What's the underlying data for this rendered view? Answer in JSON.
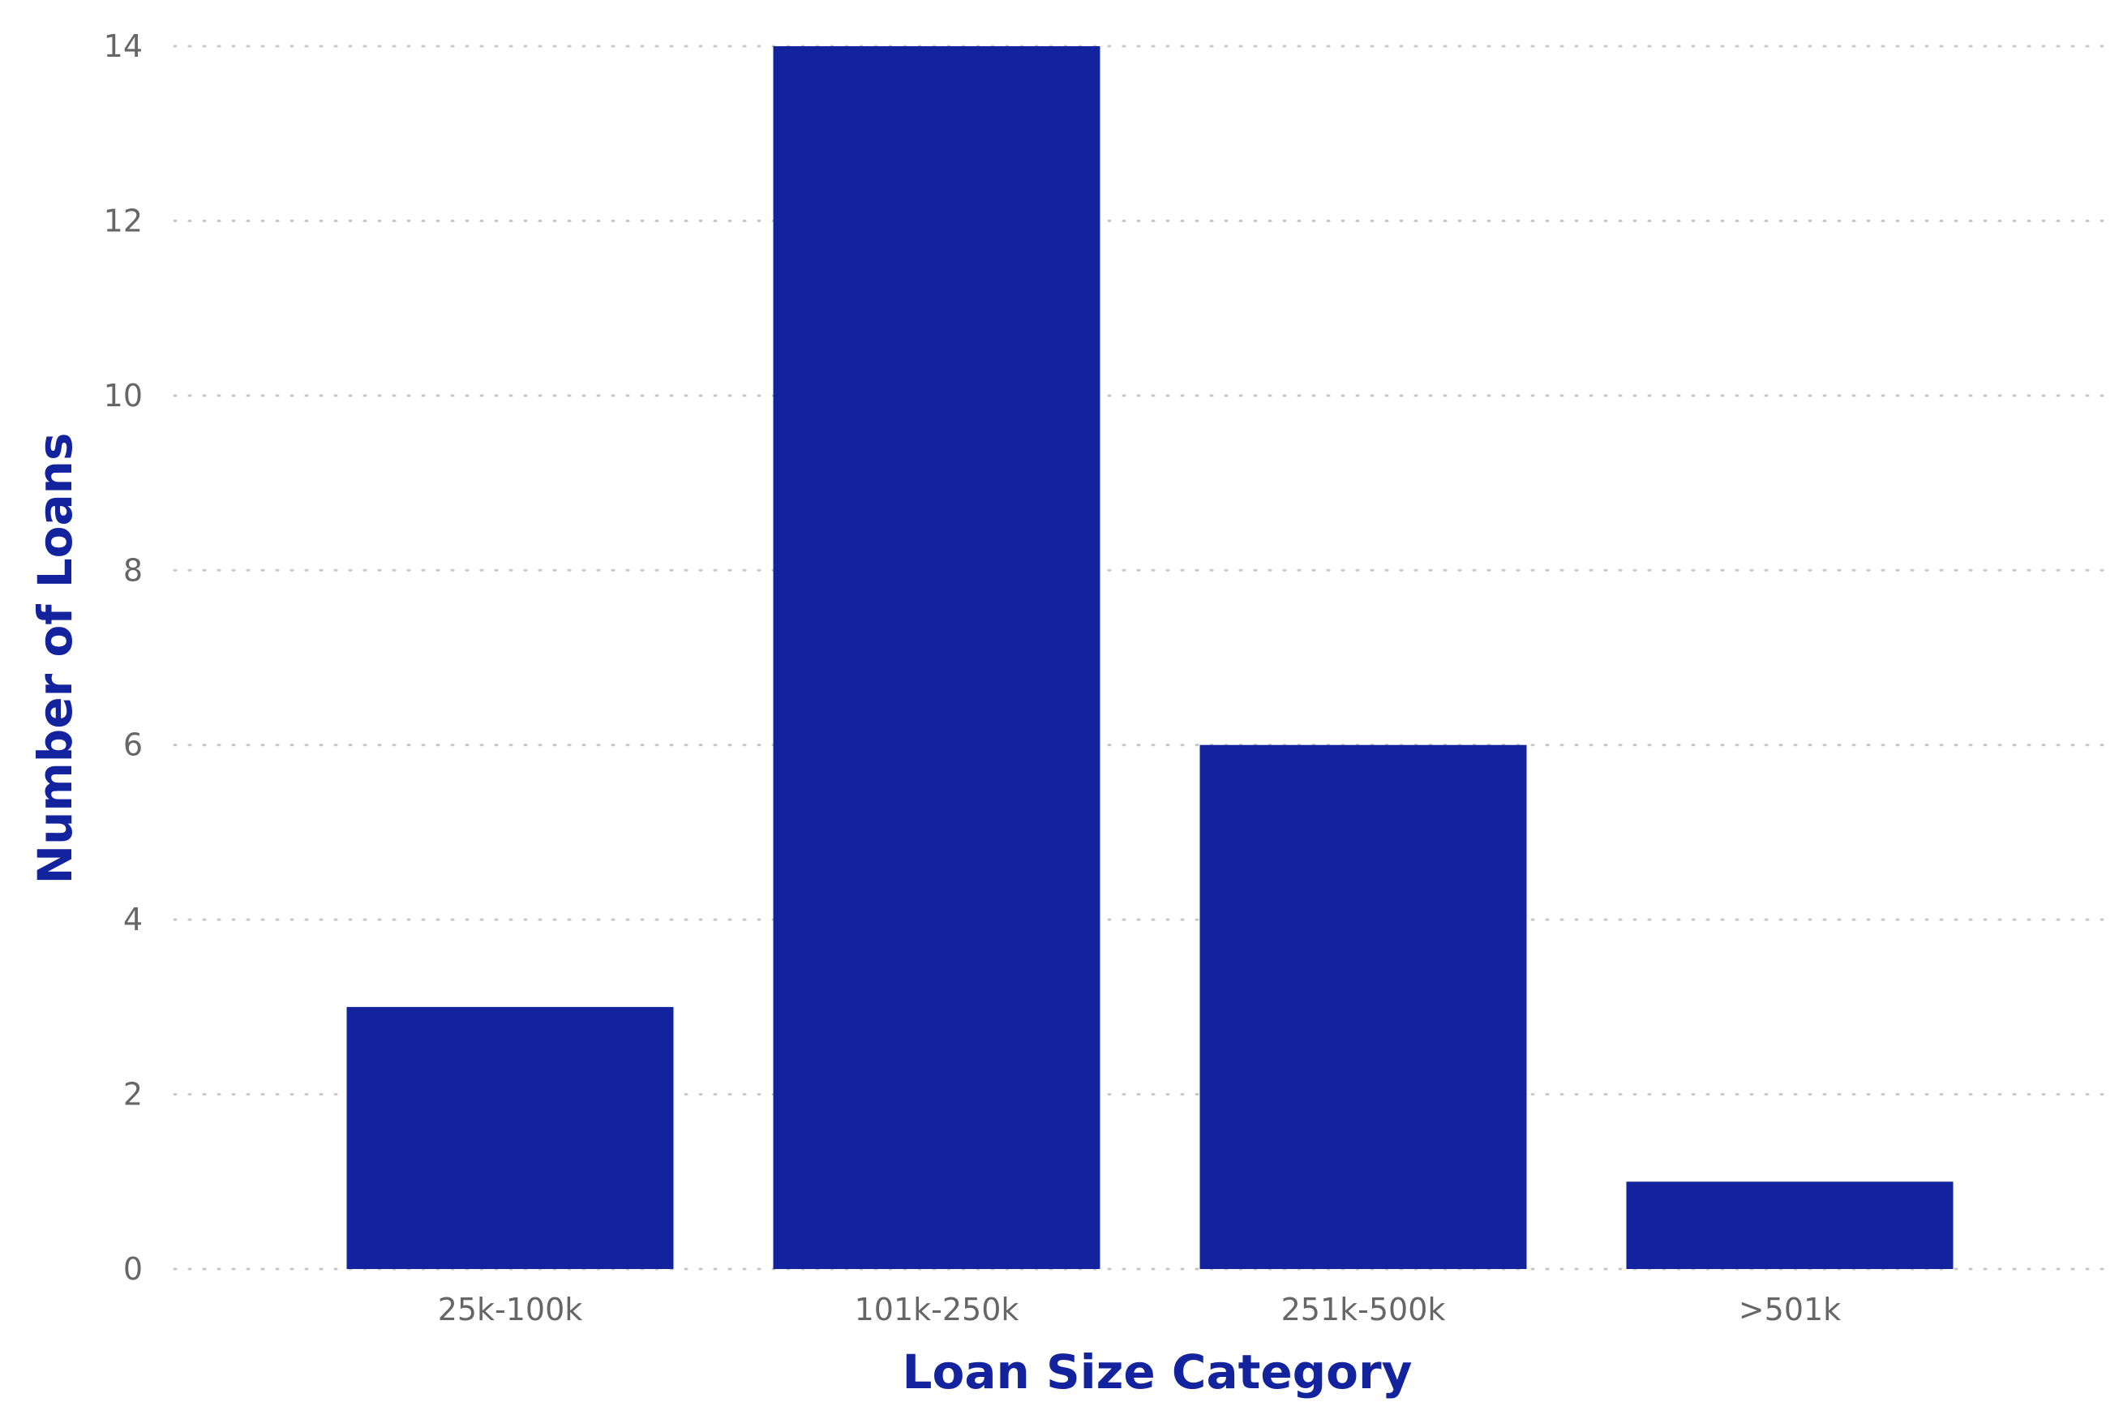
{
  "chart_data": {
    "type": "bar",
    "categories": [
      "25k-100k",
      "101k-250k",
      "251k-500k",
      ">501k"
    ],
    "values": [
      3,
      14,
      6,
      1
    ],
    "xlabel": "Loan Size Category",
    "ylabel": "Number of Loans",
    "ylim": [
      0,
      14
    ],
    "yticks": [
      0,
      2,
      4,
      6,
      8,
      10,
      12,
      14
    ],
    "grid": "horizontal-dotted",
    "bar_color": "#13239E",
    "axis_title_color": "#13239E",
    "tick_color": "#666666",
    "grid_color": "#c8c8c8"
  }
}
